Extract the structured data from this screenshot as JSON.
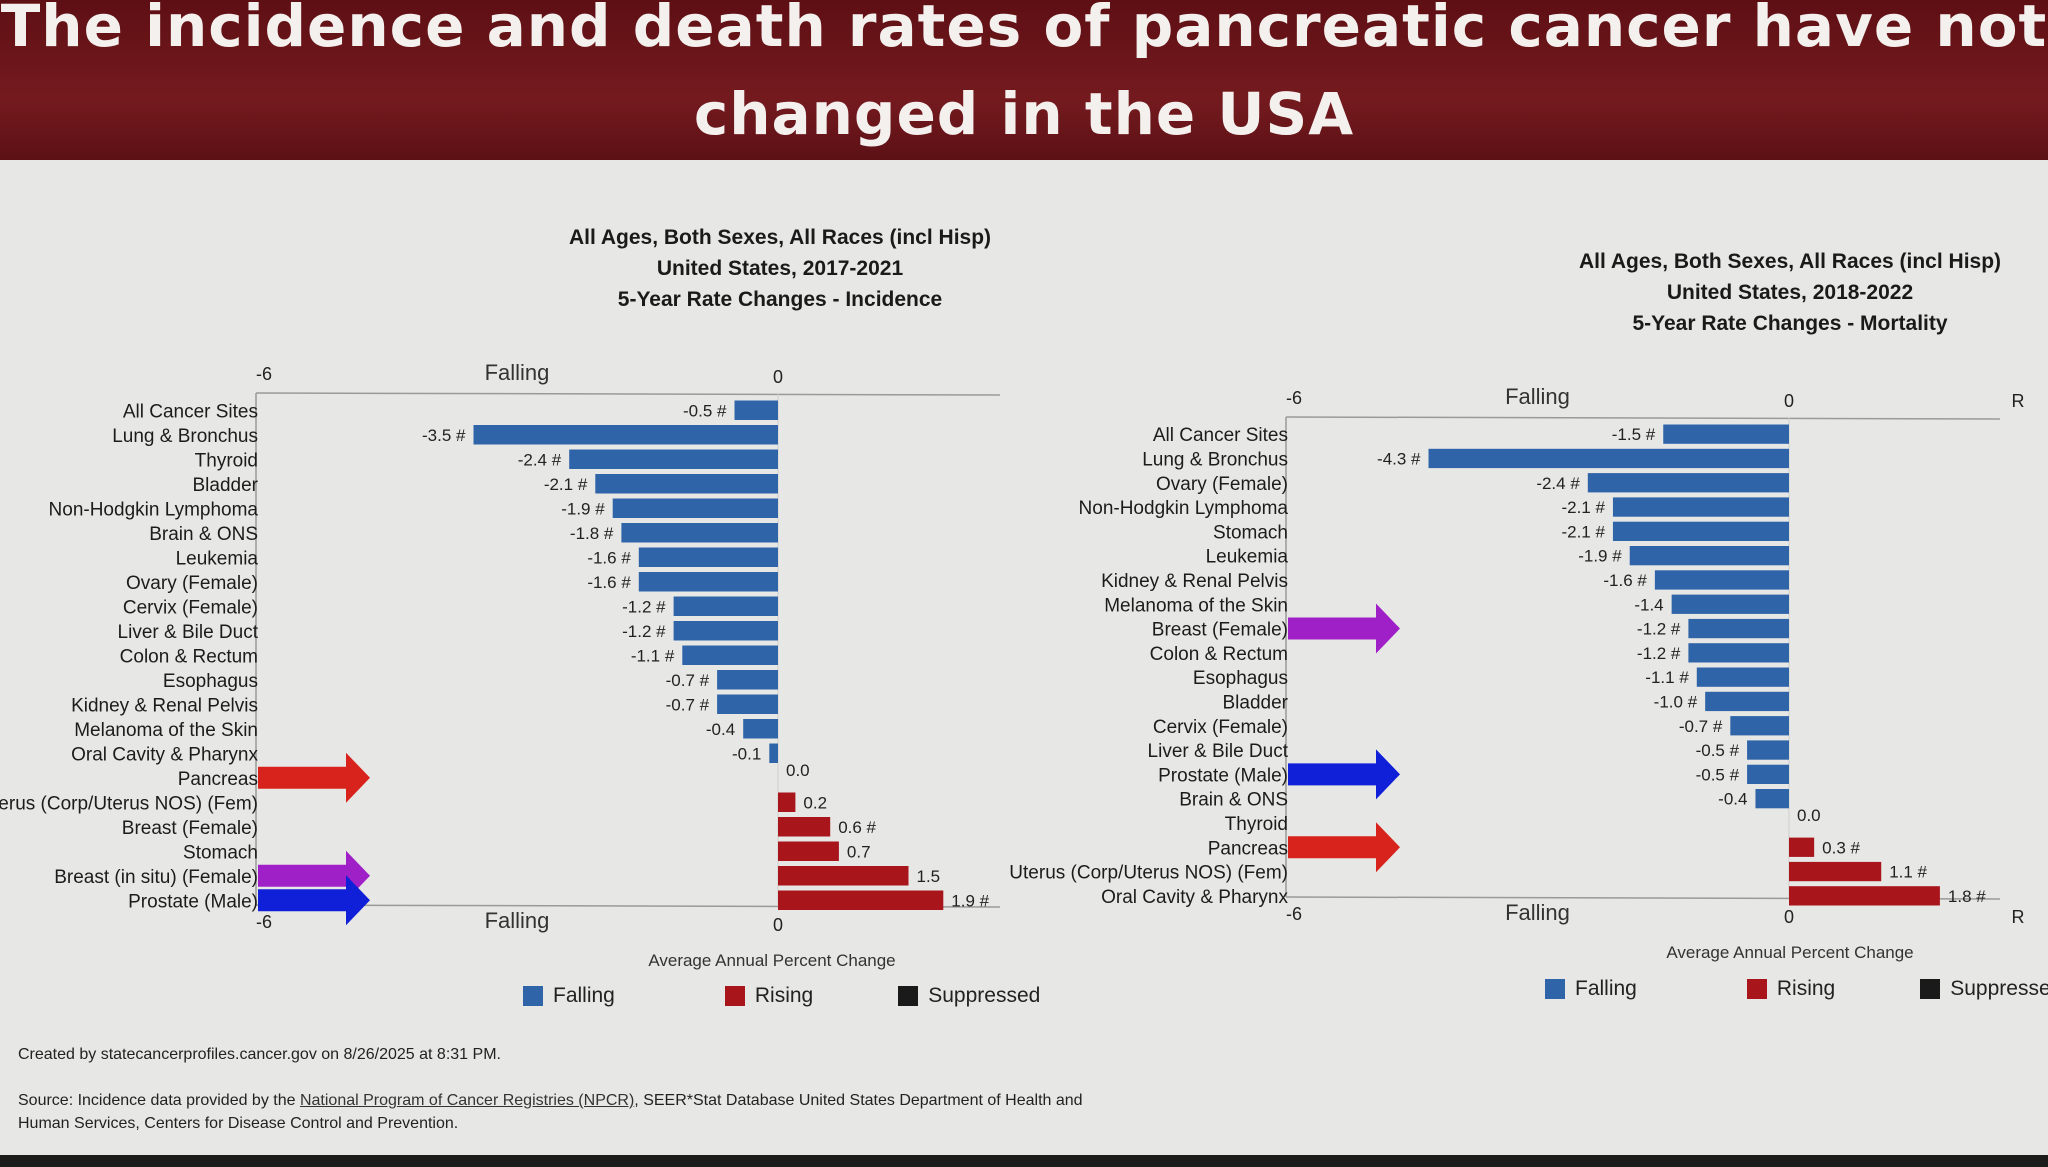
{
  "header": {
    "title_line1": "The incidence and death rates of pancreatic cancer have not",
    "title_line2": "changed in the USA"
  },
  "colors": {
    "falling": "#2f64a8",
    "rising": "#a8161c",
    "suppressed": "#1a1a1a",
    "banner": "#6e151b"
  },
  "chart_data": [
    {
      "type": "bar",
      "orientation": "horizontal",
      "title_lines": [
        "All Ages, Both Sexes, All Races (incl Hisp)",
        "United States, 2017-2021",
        "5-Year Rate Changes - Incidence"
      ],
      "xlabel": "Average Annual Percent Change",
      "axis_top": {
        "min_label": "-6",
        "mid_label": "Falling",
        "zero_label": "0"
      },
      "axis_bottom": {
        "min_label": "-6",
        "mid_label": "Falling",
        "zero_label": "0"
      },
      "xlim": [
        -6,
        2.5
      ],
      "legend": [
        "Falling",
        "Rising",
        "Suppressed"
      ],
      "legend_placement": "bottom",
      "categories": [
        "All Cancer Sites",
        "Lung & Bronchus",
        "Thyroid",
        "Bladder",
        "Non-Hodgkin Lymphoma",
        "Brain & ONS",
        "Leukemia",
        "Ovary (Female)",
        "Cervix (Female)",
        "Liver & Bile Duct",
        "Colon & Rectum",
        "Esophagus",
        "Kidney & Renal Pelvis",
        "Melanoma of the Skin",
        "Oral Cavity & Pharynx",
        "Pancreas",
        "Uterus (Corp/Uterus NOS) (Fem)",
        "Breast (Female)",
        "Stomach",
        "Breast (in situ) (Female)",
        "Prostate (Male)"
      ],
      "values": [
        -0.5,
        -3.5,
        -2.4,
        -2.1,
        -1.9,
        -1.8,
        -1.6,
        -1.6,
        -1.2,
        -1.2,
        -1.1,
        -0.7,
        -0.7,
        -0.4,
        -0.1,
        0.0,
        0.2,
        0.6,
        0.7,
        1.5,
        1.9
      ],
      "significant": [
        true,
        true,
        true,
        true,
        true,
        true,
        true,
        true,
        true,
        true,
        true,
        true,
        true,
        false,
        false,
        false,
        false,
        true,
        false,
        false,
        true
      ],
      "data_labels": [
        "-0.5 #",
        "-3.5 #",
        "-2.4 #",
        "-2.1 #",
        "-1.9 #",
        "-1.8 #",
        "-1.6 #",
        "-1.6 #",
        "-1.2 #",
        "-1.2 #",
        "-1.1 #",
        "-0.7 #",
        "-0.7 #",
        "-0.4",
        "-0.1",
        "0.0",
        "0.2",
        "0.6 #",
        "0.7",
        "1.5",
        "1.9 #"
      ],
      "highlight_arrows": [
        {
          "category": "Pancreas",
          "color": "#d8231c"
        },
        {
          "category": "Breast (in situ) (Female)",
          "color": "#a020c8"
        },
        {
          "category": "Prostate (Male)",
          "color": "#1020d8"
        }
      ]
    },
    {
      "type": "bar",
      "orientation": "horizontal",
      "title_lines": [
        "All Ages, Both Sexes, All Races (incl Hisp)",
        "United States, 2018-2022",
        "5-Year Rate Changes - Mortality"
      ],
      "xlabel": "Average Annual Percent Change",
      "axis_top": {
        "min_label": "-6",
        "mid_label": "Falling",
        "zero_label": "0",
        "max_label": "R"
      },
      "axis_bottom": {
        "min_label": "-6",
        "mid_label": "Falling",
        "zero_label": "0",
        "max_label": "R"
      },
      "xlim": [
        -6,
        2.7
      ],
      "legend": [
        "Falling",
        "Rising",
        "Suppressed"
      ],
      "legend_placement": "bottom",
      "categories": [
        "All Cancer Sites",
        "Lung & Bronchus",
        "Ovary (Female)",
        "Non-Hodgkin Lymphoma",
        "Stomach",
        "Leukemia",
        "Kidney & Renal Pelvis",
        "Melanoma of the Skin",
        "Breast (Female)",
        "Colon & Rectum",
        "Esophagus",
        "Bladder",
        "Cervix (Female)",
        "Liver & Bile Duct",
        "Prostate (Male)",
        "Brain & ONS",
        "Thyroid",
        "Pancreas",
        "Uterus (Corp/Uterus NOS) (Fem)",
        "Oral Cavity & Pharynx"
      ],
      "values": [
        -1.5,
        -4.3,
        -2.4,
        -2.1,
        -2.1,
        -1.9,
        -1.6,
        -1.4,
        -1.2,
        -1.2,
        -1.1,
        -1.0,
        -0.7,
        -0.5,
        -0.5,
        -0.4,
        0.0,
        0.3,
        1.1,
        1.8
      ],
      "significant": [
        true,
        true,
        true,
        true,
        true,
        true,
        true,
        false,
        true,
        true,
        true,
        true,
        true,
        true,
        true,
        false,
        false,
        true,
        true,
        true
      ],
      "data_labels": [
        "-1.5 #",
        "-4.3 #",
        "-2.4 #",
        "-2.1 #",
        "-2.1 #",
        "-1.9 #",
        "-1.6 #",
        "-1.4",
        "-1.2 #",
        "-1.2 #",
        "-1.1 #",
        "-1.0 #",
        "-0.7 #",
        "-0.5 #",
        "-0.5 #",
        "-0.4",
        "0.0",
        "0.3 #",
        "1.1 #",
        "1.8 #"
      ],
      "highlight_arrows": [
        {
          "category": "Breast (Female)",
          "color": "#a020c8"
        },
        {
          "category": "Prostate (Male)",
          "color": "#1020d8"
        },
        {
          "category": "Pancreas",
          "color": "#d8231c"
        }
      ]
    }
  ],
  "footer": {
    "created": "Created by statecancerprofiles.cancer.gov on 8/26/2025 at 8:31 PM.",
    "source_prefix": "Source: Incidence data provided by the ",
    "source_link": "National Program of Cancer Registries (NPCR)",
    "source_suffix": ", SEER*Stat Database United States Department of Health and",
    "source_line2": "Human Services, Centers for Disease Control and Prevention."
  }
}
